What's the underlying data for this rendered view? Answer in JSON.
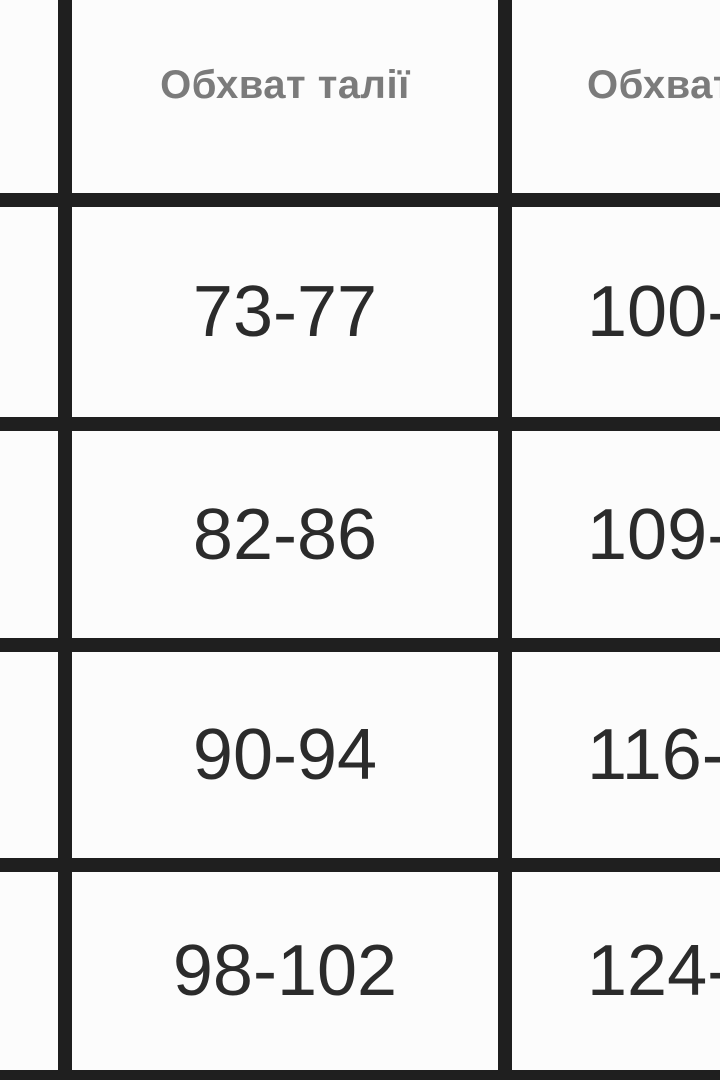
{
  "table": {
    "description": "size-chart-table-crop",
    "headers": {
      "col_cut_left": "",
      "waist": "Обхват талії",
      "hips": "Обхват"
    },
    "rows": [
      {
        "col_cut_left": "",
        "waist": "73-77",
        "hips": "100-"
      },
      {
        "col_cut_left": "",
        "waist": "82-86",
        "hips": "109-"
      },
      {
        "col_cut_left": "",
        "waist": "90-94",
        "hips": "116-"
      },
      {
        "col_cut_left": "",
        "waist": "98-102",
        "hips": "124-"
      }
    ],
    "colors": {
      "grid_line": "#1f1f1f",
      "cell_background": "#fcfcfc",
      "header_text": "#7b7b7b",
      "data_text": "#2b2b2b"
    }
  }
}
